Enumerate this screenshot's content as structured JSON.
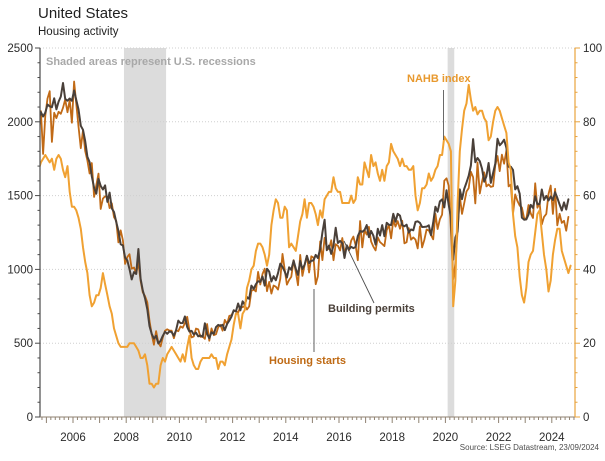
{
  "header": {
    "title": "United States",
    "subtitle": "Housing activity"
  },
  "note": "Shaded areas represent U.S. recessions",
  "source": "Source: LSEG Datastream, 23/09/2024",
  "colors": {
    "nahb_line": "#F0A132",
    "starts_line": "#C16A16",
    "permits_line": "#4A4039",
    "recession_band": "#DCDCDC",
    "gridline": "#CFCFCF",
    "left_axis": "#4A4A4A",
    "bottom_axis": "#8F8272",
    "right_axis": "#E8A33D",
    "tick_label": "#2B2B2B",
    "note_text": "#A8A8A8"
  },
  "chart_data": {
    "type": "line",
    "title": "United States — Housing activity",
    "x_tick_years": [
      2006,
      2008,
      2010,
      2012,
      2014,
      2016,
      2018,
      2020,
      2022,
      2024
    ],
    "left_axis": {
      "min": 0,
      "max": 2500,
      "ticks": [
        0,
        500,
        1000,
        1500,
        2000,
        2500
      ],
      "minor_step": 100
    },
    "right_axis": {
      "min": 0,
      "max": 100,
      "ticks": [
        0,
        20,
        40,
        60,
        80,
        100
      ],
      "minor_step": 4
    },
    "grid": "dotted horizontal",
    "recessions": [
      {
        "start": "2007-12",
        "end": "2009-06"
      },
      {
        "start": "2020-02",
        "end": "2020-04"
      }
    ],
    "series": [
      {
        "name": "Housing starts",
        "axis": "left",
        "color": "#C16A16",
        "width": 1.8,
        "start": "2004-09",
        "freq": "monthly",
        "values": [
          1905,
          2072,
          1782,
          2042,
          2158,
          2207,
          1864,
          2061,
          2025,
          2068,
          2054,
          2095,
          2151,
          2065,
          2147,
          1994,
          2273,
          2119,
          1969,
          1821,
          1942,
          1802,
          1737,
          1650,
          1720,
          1491,
          1570,
          1649,
          1409,
          1480,
          1495,
          1490,
          1415,
          1448,
          1354,
          1330,
          1183,
          1264,
          1197,
          1037,
          1084,
          1103,
          1005,
          1013,
          973,
          1046,
          923,
          844,
          820,
          777,
          652,
          560,
          490,
          582,
          505,
          478,
          540,
          585,
          594,
          586,
          585,
          534,
          588,
          581,
          614,
          604,
          636,
          679,
          588,
          539,
          546,
          599,
          594,
          543,
          545,
          529,
          630,
          517,
          600,
          554,
          561,
          608,
          623,
          585,
          658,
          630,
          685,
          689,
          720,
          718,
          706,
          747,
          744,
          754,
          728,
          749,
          854,
          863,
          851,
          983,
          898,
          969,
          1005,
          852,
          915,
          836,
          891,
          883,
          863,
          936,
          1105,
          999,
          897,
          928,
          950,
          1063,
          984,
          893,
          1098,
          956,
          1028,
          1092,
          979,
          1089,
          1080,
          900,
          954,
          1190,
          1063,
          1214,
          1147,
          1137,
          1197,
          1062,
          1171,
          1160,
          1128,
          1213,
          1113,
          1155,
          1128,
          1195,
          1222,
          1164,
          1062,
          1328,
          1149,
          1268,
          1236,
          1288,
          1189,
          1154,
          1129,
          1217,
          1185,
          1172,
          1158,
          1265,
          1303,
          1210,
          1334,
          1290,
          1327,
          1276,
          1329,
          1177,
          1184,
          1279,
          1201,
          1217,
          1202,
          1142,
          1291,
          1149,
          1199,
          1270,
          1264,
          1233,
          1204,
          1377,
          1274,
          1340,
          1371,
          1601,
          1617,
          1567,
          1269,
          934,
          1038,
          1265,
          1497,
          1376,
          1448,
          1528,
          1551,
          1661,
          1625,
          1447,
          1725,
          1514,
          1594,
          1657,
          1562,
          1576,
          1559,
          1563,
          1706,
          1768,
          1666,
          1777,
          1716,
          1805,
          1562,
          1575,
          1377,
          1508,
          1465,
          1432,
          1419,
          1348,
          1340,
          1436,
          1380,
          1348,
          1583,
          1418,
          1451,
          1305,
          1356,
          1376,
          1510,
          1568,
          1376,
          1546,
          1299,
          1377,
          1315,
          1329,
          1262,
          1356
        ]
      },
      {
        "name": "Building permits",
        "axis": "left",
        "color": "#4A4039",
        "width": 2,
        "start": "2004-09",
        "freq": "monthly",
        "values": [
          2016,
          2065,
          2036,
          2062,
          2117,
          2105,
          2099,
          2159,
          2085,
          2137,
          2171,
          2263,
          2155,
          2143,
          2158,
          2142,
          2212,
          2147,
          2084,
          1973,
          1946,
          1869,
          1763,
          1727,
          1631,
          1553,
          1513,
          1613,
          1566,
          1541,
          1569,
          1457,
          1520,
          1413,
          1389,
          1322,
          1261,
          1170,
          1162,
          1080,
          1061,
          1002,
          932,
          982,
          969,
          1138,
          937,
          857,
          805,
          730,
          616,
          564,
          531,
          550,
          498,
          516,
          550,
          577,
          564,
          580,
          575,
          551,
          589,
          653,
          636,
          637,
          681,
          610,
          579,
          583,
          559,
          571,
          547,
          552,
          544,
          635,
          563,
          534,
          574,
          563,
          609,
          624,
          617,
          625,
          589,
          630,
          653,
          680,
          723,
          715,
          769,
          723,
          784,
          760,
          812,
          801,
          890,
          868,
          900,
          920,
          915,
          952,
          890,
          1005,
          985,
          918,
          954,
          926,
          974,
          1039,
          1017,
          986,
          945,
          1014,
          997,
          1059,
          1005,
          963,
          1057,
          1003,
          1031,
          1092,
          1043,
          1058,
          1060,
          1098,
          1077,
          1140,
          1250,
          1337,
          1130,
          1161,
          1105,
          1161,
          1282,
          1179,
          1193,
          1177,
          1077,
          1163,
          1136,
          1153,
          1144,
          1152,
          1225,
          1260,
          1255,
          1266,
          1300,
          1219,
          1260,
          1228,
          1168,
          1275,
          1230,
          1300,
          1225,
          1316,
          1303,
          1300,
          1377,
          1323,
          1377,
          1364,
          1301,
          1292,
          1303,
          1249,
          1270,
          1265,
          1322,
          1326,
          1316,
          1287,
          1288,
          1290,
          1299,
          1232,
          1317,
          1425,
          1391,
          1461,
          1474,
          1420,
          1536,
          1438,
          1356,
          1066,
          1216,
          1258,
          1542,
          1476,
          1545,
          1589,
          1635,
          1704,
          1883,
          1726,
          1755,
          1733,
          1683,
          1594,
          1630,
          1721,
          1586,
          1653,
          1717,
          1885,
          1841,
          1857,
          1879,
          1823,
          1695,
          1696,
          1674,
          1542,
          1564,
          1512,
          1351,
          1337,
          1339,
          1371,
          1437,
          1417,
          1496,
          1441,
          1443,
          1541,
          1471,
          1498,
          1467,
          1493,
          1470,
          1523,
          1485,
          1440,
          1399,
          1454,
          1406,
          1475
        ]
      },
      {
        "name": "NAHB index",
        "axis": "right",
        "color": "#F0A132",
        "width": 2,
        "start": "2004-09",
        "freq": "monthly",
        "values": [
          67,
          69,
          70,
          71,
          70,
          69,
          70,
          67,
          70,
          71,
          70,
          67,
          65,
          68,
          61,
          57,
          57,
          56,
          54,
          51,
          46,
          42,
          39,
          33,
          30,
          31,
          33,
          33,
          35,
          39,
          36,
          33,
          30,
          28,
          24,
          22,
          20,
          19,
          19,
          19,
          19,
          20,
          20,
          20,
          19,
          18,
          16,
          16,
          17,
          14,
          9,
          9,
          8,
          9,
          9,
          14,
          16,
          15,
          17,
          18,
          19,
          18,
          17,
          16,
          15,
          17,
          15,
          19,
          22,
          16,
          14,
          13,
          13,
          15,
          16,
          16,
          16,
          16,
          17,
          16,
          16,
          13,
          15,
          15,
          14,
          17,
          19,
          21,
          25,
          28,
          28,
          24,
          28,
          29,
          35,
          37,
          40,
          41,
          45,
          47,
          47,
          46,
          44,
          41,
          44,
          52,
          56,
          59,
          58,
          54,
          54,
          57,
          56,
          46,
          47,
          46,
          45,
          49,
          53,
          55,
          59,
          54,
          58,
          58,
          57,
          55,
          52,
          56,
          54,
          59,
          60,
          61,
          61,
          65,
          62,
          61,
          61,
          58,
          58,
          58,
          58,
          60,
          58,
          59,
          65,
          63,
          63,
          69,
          67,
          65,
          71,
          68,
          69,
          66,
          64,
          67,
          64,
          68,
          69,
          74,
          72,
          71,
          70,
          68,
          70,
          68,
          68,
          67,
          67,
          68,
          60,
          56,
          58,
          62,
          62,
          63,
          66,
          64,
          65,
          67,
          68,
          71,
          71,
          76,
          75,
          74,
          72,
          30,
          37,
          58,
          72,
          78,
          83,
          85,
          90,
          86,
          83,
          84,
          82,
          83,
          83,
          81,
          80,
          75,
          76,
          80,
          83,
          84,
          83,
          81,
          79,
          77,
          69,
          67,
          55,
          49,
          46,
          38,
          33,
          31,
          35,
          42,
          44,
          45,
          50,
          55,
          56,
          50,
          44,
          40,
          34,
          37,
          44,
          48,
          51,
          51,
          45,
          43,
          41,
          39,
          41
        ]
      }
    ]
  }
}
